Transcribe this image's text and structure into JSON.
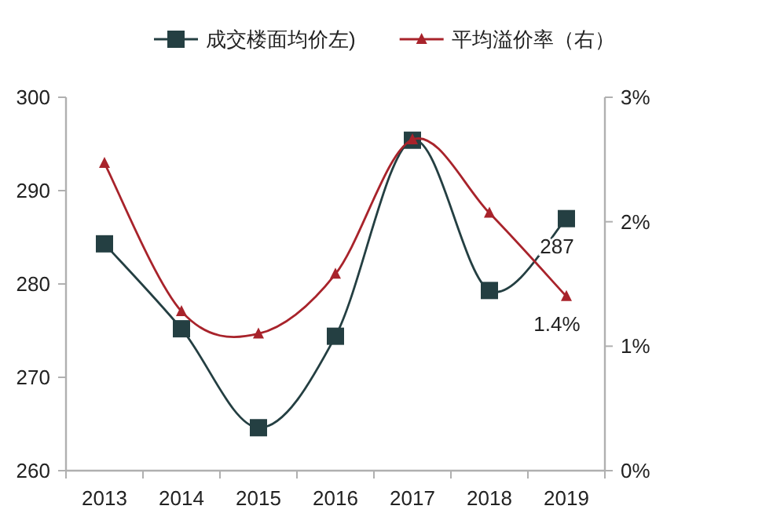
{
  "chart_data": {
    "type": "line",
    "categories": [
      "2013",
      "2014",
      "2015",
      "2016",
      "2017",
      "2018",
      "2019"
    ],
    "series": [
      {
        "name": "成交楼面均价左)",
        "color": "#243f42",
        "marker": "square",
        "values": [
          284.3,
          275.2,
          264.6,
          274.4,
          295.4,
          279.3,
          287
        ],
        "value_labels": [
          null,
          null,
          null,
          null,
          null,
          null,
          "287"
        ]
      },
      {
        "name": "平均溢价率（右）",
        "color": "#a8232b",
        "marker": "triangle",
        "axis": "y2",
        "values": [
          2.47,
          1.28,
          1.1,
          1.58,
          2.66,
          2.07,
          1.4
        ],
        "value_labels": [
          null,
          null,
          null,
          null,
          null,
          null,
          "1.4%"
        ]
      }
    ],
    "ylim": [
      260,
      300
    ],
    "yticks": [
      260,
      270,
      280,
      290,
      300
    ],
    "y2lim": [
      0,
      3
    ],
    "y2ticks": [
      {
        "value": 0,
        "label": "0%"
      },
      {
        "value": 1,
        "label": "1%"
      },
      {
        "value": 2,
        "label": "2%"
      },
      {
        "value": 3,
        "label": "3%"
      }
    ],
    "legend": "top"
  }
}
